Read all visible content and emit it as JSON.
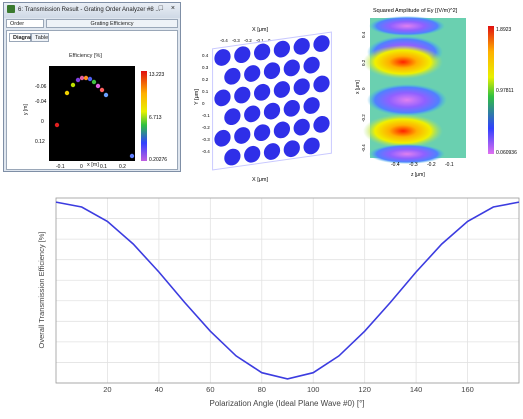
{
  "window": {
    "title": "6: Transmission Result - Grating Order Analyzer #8 ...",
    "controls": "– □ ×",
    "tabs_row1": [
      "Order Collection",
      "Grating Efficiency"
    ],
    "tabs_row2": [
      "Diagram",
      "Table"
    ],
    "plot_title": "Efficiency  [%]",
    "ylabel": "y [m]",
    "xlabel": "x [m]",
    "yticks": [
      "-0.06",
      "-0.04",
      "0",
      "0.12"
    ],
    "xticks": [
      "-0.1",
      "0",
      "0.1",
      "0.2"
    ],
    "colorbar": [
      "13.223",
      "6.713",
      "0.20276"
    ]
  },
  "lattice": {
    "x_axis_label": "X [μm]",
    "y_axis_label": "Y [μm]",
    "x_ticks": [
      "-0.4",
      "-0.3",
      "-0.2",
      "-0.1",
      "0",
      "0.1",
      "0.2",
      "0.3",
      "0.4"
    ],
    "y_ticks": [
      "0.4",
      "0.3",
      "0.2",
      "0.1",
      "0",
      "-0.1",
      "-0.2",
      "-0.3",
      "-0.4"
    ]
  },
  "heatmap": {
    "title": "Squared Amplitude of Ey  [(V/m)^2]",
    "ylabel": "x [μm]",
    "xlabel": "z [μm]",
    "yticks": [
      "0.4",
      "0.2",
      "0",
      "-0.2",
      "-0.4"
    ],
    "xticks": [
      "-0.4",
      "-0.3",
      "-0.2",
      "-0.1"
    ],
    "colorbar": [
      "1.8923",
      "0.97811",
      "0.060936"
    ]
  },
  "chart_data": {
    "type": "line",
    "title": "",
    "xlabel": "Polarization Angle (Ideal Plane Wave #0) [°]",
    "ylabel": "Overall Transmission Efficiency [%]",
    "xlim": [
      0,
      180
    ],
    "ylim": [
      0,
      45
    ],
    "xticks": [
      20,
      40,
      60,
      80,
      100,
      120,
      140,
      160
    ],
    "yticks": [
      0,
      5,
      10,
      15,
      20,
      25,
      30,
      35,
      40
    ],
    "grid": true,
    "color": "#3c3ce0",
    "series": [
      {
        "x": [
          0,
          10,
          20,
          30,
          40,
          50,
          60,
          70,
          80,
          90,
          100,
          110,
          120,
          130,
          140,
          150,
          160,
          170,
          180
        ],
        "values": [
          44,
          42.8,
          39.3,
          33.8,
          27,
          19.6,
          12.6,
          6.6,
          2.5,
          1,
          2.5,
          6.6,
          12.6,
          19.6,
          27,
          33.8,
          39.3,
          42.8,
          44
        ]
      }
    ]
  }
}
